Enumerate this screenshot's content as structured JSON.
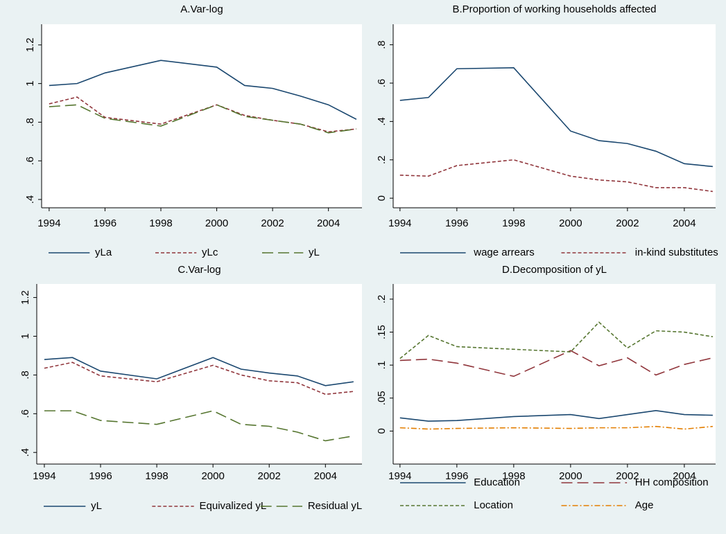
{
  "chart_data": [
    {
      "type": "line",
      "title": "A.Var-log",
      "x": [
        1994,
        1995,
        1996,
        1998,
        2000,
        2001,
        2002,
        2003,
        2004,
        2005
      ],
      "xlim": [
        1993.73,
        2005.2
      ],
      "xticks": [
        1994,
        1996,
        1998,
        2000,
        2002,
        2004
      ],
      "ylim": [
        0.357,
        1.307
      ],
      "yticks": [
        {
          "value": 0.4,
          "label": ".4"
        },
        {
          "value": 0.6,
          "label": ".6"
        },
        {
          "value": 0.8,
          "label": ".8"
        },
        1,
        {
          "value": 1.2,
          "label": "1.2"
        }
      ],
      "series": [
        {
          "name": "yLa",
          "color": "#1a476f",
          "style": "solid",
          "values": [
            0.99,
            1.0,
            1.055,
            1.12,
            1.085,
            0.99,
            0.975,
            0.935,
            0.89,
            0.815
          ]
        },
        {
          "name": "yLc",
          "color": "#90353b",
          "style": "dash",
          "values": [
            0.895,
            0.93,
            0.825,
            0.79,
            0.89,
            0.835,
            0.81,
            0.79,
            0.75,
            0.765
          ]
        },
        {
          "name": "yL",
          "color": "#55752f",
          "style": "longdash",
          "values": [
            0.88,
            0.89,
            0.82,
            0.78,
            0.89,
            0.83,
            0.81,
            0.79,
            0.745,
            0.765
          ]
        }
      ]
    },
    {
      "type": "line",
      "title": "B.Proportion of working households affected",
      "x": [
        1994,
        1995,
        1996,
        1998,
        2000,
        2001,
        2002,
        2003,
        2004,
        2005
      ],
      "xlim": [
        1993.76,
        2005.1
      ],
      "xticks": [
        1994,
        1996,
        1998,
        2000,
        2002,
        2004
      ],
      "ylim": [
        -0.05,
        0.907
      ],
      "yticks": [
        0,
        {
          "value": 0.2,
          "label": ".2"
        },
        {
          "value": 0.4,
          "label": ".4"
        },
        {
          "value": 0.6,
          "label": ".6"
        },
        {
          "value": 0.8,
          "label": ".8"
        }
      ],
      "series": [
        {
          "name": "wage arrears",
          "color": "#1a476f",
          "style": "solid",
          "values": [
            0.51,
            0.525,
            0.675,
            0.68,
            0.35,
            0.3,
            0.285,
            0.245,
            0.18,
            0.165
          ]
        },
        {
          "name": "in-kind substitutes",
          "color": "#90353b",
          "style": "dash",
          "values": [
            0.12,
            0.115,
            0.17,
            0.2,
            0.115,
            0.095,
            0.085,
            0.055,
            0.055,
            0.035
          ]
        }
      ]
    },
    {
      "type": "line",
      "title": "C.Var-log",
      "x": [
        1994,
        1995,
        1996,
        1998,
        2000,
        2001,
        2002,
        2003,
        2004,
        2005
      ],
      "xlim": [
        1993.73,
        2005.3
      ],
      "xticks": [
        1994,
        1996,
        1998,
        2000,
        2002,
        2004
      ],
      "ylim": [
        0.34,
        1.27
      ],
      "yticks": [
        {
          "value": 0.4,
          "label": ".4"
        },
        {
          "value": 0.6,
          "label": ".6"
        },
        {
          "value": 0.8,
          "label": ".8"
        },
        1,
        {
          "value": 1.2,
          "label": "1.2"
        }
      ],
      "series": [
        {
          "name": "yL",
          "color": "#1a476f",
          "style": "solid",
          "values": [
            0.88,
            0.89,
            0.82,
            0.78,
            0.89,
            0.83,
            0.81,
            0.795,
            0.745,
            0.765
          ]
        },
        {
          "name": "Equivalized yL",
          "color": "#90353b",
          "style": "dash",
          "values": [
            0.835,
            0.865,
            0.795,
            0.765,
            0.85,
            0.8,
            0.77,
            0.76,
            0.7,
            0.715
          ]
        },
        {
          "name": "Residual yL",
          "color": "#55752f",
          "style": "longdash",
          "values": [
            0.615,
            0.615,
            0.565,
            0.545,
            0.615,
            0.545,
            0.535,
            0.505,
            0.46,
            0.485
          ]
        }
      ]
    },
    {
      "type": "line",
      "title": "D.Decomposition of yL",
      "x": [
        1994,
        1995,
        1996,
        1998,
        2000,
        2001,
        2002,
        2003,
        2004,
        2005
      ],
      "xlim": [
        1993.76,
        2005.1
      ],
      "xticks": [
        1994,
        1996,
        1998,
        2000,
        2002,
        2004
      ],
      "ylim": [
        -0.05,
        0.223
      ],
      "yticks": [
        0,
        {
          "value": 0.05,
          "label": ".05"
        },
        {
          "value": 0.1,
          "label": ".1"
        },
        {
          "value": 0.15,
          "label": ".15"
        },
        {
          "value": 0.2,
          "label": ".2"
        }
      ],
      "series": [
        {
          "name": "Education",
          "color": "#1a476f",
          "style": "solid",
          "values": [
            0.02,
            0.015,
            0.016,
            0.022,
            0.025,
            0.019,
            0.025,
            0.031,
            0.025,
            0.024
          ]
        },
        {
          "name": "HH composition",
          "color": "#90353b",
          "style": "longdash",
          "values": [
            0.107,
            0.109,
            0.103,
            0.083,
            0.122,
            0.099,
            0.111,
            0.085,
            0.101,
            0.111
          ]
        },
        {
          "name": "Location",
          "color": "#55752f",
          "style": "dash",
          "values": [
            0.11,
            0.145,
            0.128,
            0.124,
            0.12,
            0.165,
            0.126,
            0.152,
            0.15,
            0.143
          ]
        },
        {
          "name": "Age",
          "color": "#e37e00",
          "style": "dashdot",
          "values": [
            0.005,
            0.003,
            0.004,
            0.005,
            0.004,
            0.005,
            0.005,
            0.007,
            0.003,
            0.007
          ]
        }
      ]
    }
  ]
}
